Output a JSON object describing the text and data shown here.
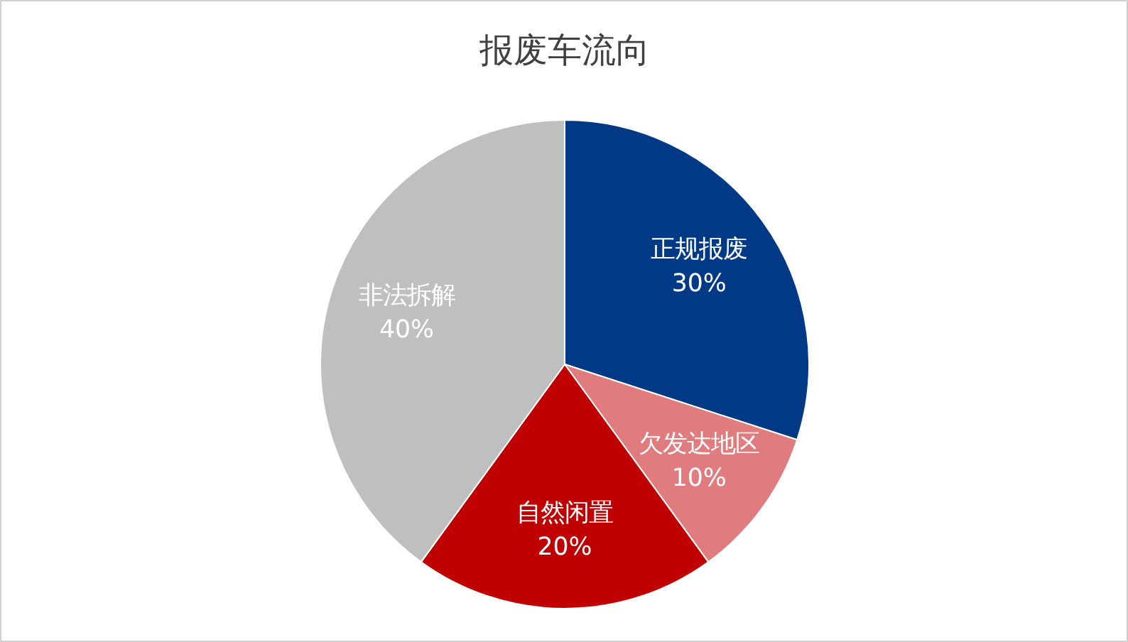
{
  "chart_data": {
    "type": "pie",
    "title": "报废车流向",
    "categories": [
      "正规报废",
      "欠发达地区",
      "自然闲置",
      "非法拆解"
    ],
    "values": [
      30,
      10,
      20,
      40
    ],
    "colors": [
      "#003a87",
      "#e07b7e",
      "#c00000",
      "#bfbfbf"
    ],
    "value_labels": [
      "30%",
      "10%",
      "20%",
      "40%"
    ]
  }
}
